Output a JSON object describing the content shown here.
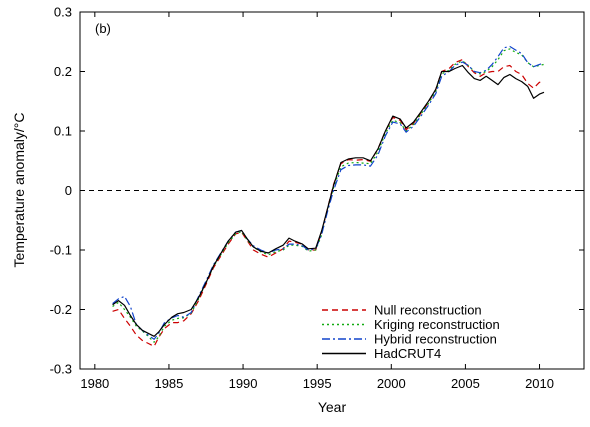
{
  "chart_data": {
    "type": "line",
    "panel_label": "(b)",
    "xlabel": "Year",
    "ylabel": "Temperature anomaly/°C",
    "xlim": [
      1979,
      2013
    ],
    "ylim": [
      -0.3,
      0.3
    ],
    "xticks": [
      1980,
      1985,
      1990,
      1995,
      2000,
      2005,
      2010
    ],
    "yticks": [
      0.3,
      0.2,
      0.1,
      0,
      -0.1,
      -0.2,
      -0.3
    ],
    "reference_line": {
      "y": 0,
      "style": "dashed",
      "color": "#000000"
    },
    "grid": false,
    "legend_position": "bottom-right",
    "legend": [
      "Null reconstruction",
      "Kriging reconstruction",
      "Hybrid reconstruction",
      "HadCRUT4"
    ],
    "x": [
      1981.2,
      1981.6,
      1982.0,
      1982.4,
      1982.8,
      1983.2,
      1983.6,
      1984.0,
      1984.3,
      1984.7,
      1985.2,
      1985.6,
      1986.0,
      1986.5,
      1987.0,
      1987.5,
      1988.0,
      1988.5,
      1989.0,
      1989.5,
      1989.9,
      1990.3,
      1990.7,
      1991.2,
      1991.7,
      1992.2,
      1992.7,
      1993.1,
      1993.5,
      1994.0,
      1994.4,
      1994.9,
      1995.3,
      1995.7,
      1996.1,
      1996.6,
      1997.1,
      1997.6,
      1998.1,
      1998.6,
      1999.1,
      1999.6,
      2000.1,
      2000.6,
      2001.0,
      2001.5,
      2002.0,
      2002.5,
      2003.0,
      2003.4,
      2003.9,
      2004.3,
      2004.8,
      2005.2,
      2005.6,
      2006.0,
      2006.4,
      2006.8,
      2007.2,
      2007.6,
      2008.0,
      2008.4,
      2008.8,
      2009.2,
      2009.6,
      2010.0,
      2010.3
    ],
    "series": [
      {
        "name": "Null reconstruction",
        "color": "#cc0000",
        "dash": "6,4",
        "values": [
          -0.203,
          -0.2,
          -0.215,
          -0.228,
          -0.243,
          -0.252,
          -0.257,
          -0.262,
          -0.247,
          -0.232,
          -0.222,
          -0.222,
          -0.219,
          -0.207,
          -0.185,
          -0.158,
          -0.13,
          -0.11,
          -0.09,
          -0.073,
          -0.07,
          -0.085,
          -0.1,
          -0.107,
          -0.112,
          -0.105,
          -0.098,
          -0.085,
          -0.087,
          -0.09,
          -0.1,
          -0.1,
          -0.07,
          -0.03,
          0.01,
          0.045,
          0.052,
          0.051,
          0.052,
          0.049,
          0.07,
          0.1,
          0.123,
          0.118,
          0.102,
          0.113,
          0.13,
          0.148,
          0.17,
          0.2,
          0.205,
          0.215,
          0.22,
          0.208,
          0.198,
          0.192,
          0.198,
          0.2,
          0.2,
          0.208,
          0.21,
          0.2,
          0.195,
          0.18,
          0.172,
          0.182,
          0.18
        ]
      },
      {
        "name": "Kriging reconstruction",
        "color": "#11aa11",
        "dash": "2,3",
        "values": [
          -0.195,
          -0.188,
          -0.2,
          -0.213,
          -0.228,
          -0.236,
          -0.245,
          -0.255,
          -0.246,
          -0.228,
          -0.218,
          -0.215,
          -0.214,
          -0.206,
          -0.182,
          -0.155,
          -0.128,
          -0.108,
          -0.088,
          -0.073,
          -0.069,
          -0.084,
          -0.095,
          -0.103,
          -0.108,
          -0.103,
          -0.1,
          -0.092,
          -0.092,
          -0.094,
          -0.102,
          -0.1,
          -0.075,
          -0.032,
          0.005,
          0.04,
          0.046,
          0.047,
          0.046,
          0.045,
          0.065,
          0.096,
          0.118,
          0.114,
          0.1,
          0.111,
          0.128,
          0.146,
          0.167,
          0.196,
          0.202,
          0.212,
          0.218,
          0.21,
          0.2,
          0.196,
          0.2,
          0.208,
          0.22,
          0.235,
          0.238,
          0.232,
          0.228,
          0.215,
          0.208,
          0.21,
          0.212
        ]
      },
      {
        "name": "Hybrid reconstruction",
        "color": "#1144cc",
        "dash": "8,3,2,3",
        "values": [
          -0.19,
          -0.182,
          -0.178,
          -0.195,
          -0.225,
          -0.235,
          -0.243,
          -0.25,
          -0.24,
          -0.222,
          -0.214,
          -0.21,
          -0.213,
          -0.205,
          -0.178,
          -0.152,
          -0.125,
          -0.105,
          -0.085,
          -0.07,
          -0.067,
          -0.082,
          -0.093,
          -0.1,
          -0.105,
          -0.1,
          -0.098,
          -0.09,
          -0.09,
          -0.093,
          -0.1,
          -0.098,
          -0.074,
          -0.035,
          0.0,
          0.035,
          0.042,
          0.043,
          0.043,
          0.041,
          0.06,
          0.092,
          0.115,
          0.112,
          0.098,
          0.108,
          0.125,
          0.143,
          0.163,
          0.192,
          0.2,
          0.21,
          0.216,
          0.21,
          0.2,
          0.198,
          0.202,
          0.212,
          0.225,
          0.24,
          0.242,
          0.236,
          0.23,
          0.215,
          0.208,
          0.212,
          0.214
        ]
      },
      {
        "name": "HadCRUT4",
        "color": "#000000",
        "dash": "",
        "values": [
          -0.192,
          -0.185,
          -0.193,
          -0.21,
          -0.225,
          -0.235,
          -0.24,
          -0.245,
          -0.238,
          -0.225,
          -0.213,
          -0.207,
          -0.205,
          -0.2,
          -0.18,
          -0.155,
          -0.127,
          -0.106,
          -0.085,
          -0.07,
          -0.067,
          -0.082,
          -0.095,
          -0.102,
          -0.105,
          -0.098,
          -0.092,
          -0.08,
          -0.085,
          -0.09,
          -0.098,
          -0.097,
          -0.068,
          -0.03,
          0.008,
          0.047,
          0.053,
          0.055,
          0.055,
          0.05,
          0.07,
          0.1,
          0.125,
          0.12,
          0.105,
          0.115,
          0.132,
          0.15,
          0.17,
          0.2,
          0.2,
          0.205,
          0.21,
          0.198,
          0.188,
          0.185,
          0.192,
          0.185,
          0.178,
          0.19,
          0.195,
          0.188,
          0.183,
          0.175,
          0.155,
          0.162,
          0.165
        ]
      }
    ]
  }
}
